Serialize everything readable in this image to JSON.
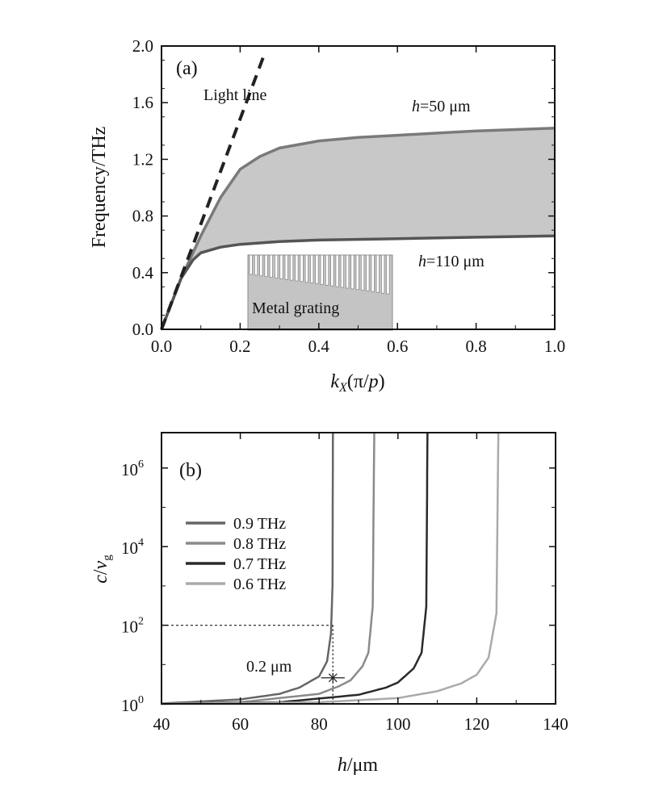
{
  "chart_data": [
    {
      "type": "area",
      "panel_label": "(a)",
      "title": "",
      "ylabel": "Frequency/THz",
      "xlabel_parts": {
        "k": "k",
        "sub": "X",
        "open": "(π/",
        "p": "p",
        "close": ")"
      },
      "xlim": [
        0,
        1.0
      ],
      "ylim": [
        0,
        2.0
      ],
      "xticks": [
        "0.0",
        "0.2",
        "0.4",
        "0.6",
        "0.8",
        "1.0"
      ],
      "yticks": [
        "0.0",
        "0.4",
        "0.8",
        "1.2",
        "1.6",
        "2.0"
      ],
      "grid": false,
      "series": [
        {
          "name": "h=50 μm",
          "label_h": "h",
          "label_rest": "=50  μm",
          "color": "#7a7a7a",
          "x": [
            0,
            0.05,
            0.1,
            0.15,
            0.2,
            0.25,
            0.3,
            0.4,
            0.5,
            0.6,
            0.7,
            0.8,
            0.9,
            1.0
          ],
          "y": [
            0,
            0.36,
            0.66,
            0.93,
            1.13,
            1.22,
            1.28,
            1.33,
            1.355,
            1.37,
            1.385,
            1.4,
            1.41,
            1.42
          ]
        },
        {
          "name": "h=110 μm",
          "label_h": "h",
          "label_rest": "=110  μm",
          "color": "#555555",
          "x": [
            0,
            0.05,
            0.08,
            0.1,
            0.15,
            0.2,
            0.3,
            0.4,
            0.6,
            0.8,
            1.0
          ],
          "y": [
            0,
            0.36,
            0.49,
            0.54,
            0.58,
            0.6,
            0.62,
            0.63,
            0.64,
            0.65,
            0.66
          ]
        },
        {
          "name": "Light line",
          "style": "dashed",
          "color": "#222222",
          "x": [
            0,
            0.26
          ],
          "y": [
            0,
            1.93
          ]
        }
      ],
      "fill_between": {
        "color": "#c8c8c8"
      },
      "annotations": {
        "light_line": "Light line",
        "inset": "Metal grating"
      }
    },
    {
      "type": "line",
      "panel_label": "(b)",
      "ylabel_parts": {
        "c": "c",
        "slash": "/",
        "v": "v",
        "sub": "g"
      },
      "xlabel_parts": {
        "h": "h",
        "rest": "/μm"
      },
      "xlim": [
        40,
        140
      ],
      "ylim_log10": [
        0,
        6.9
      ],
      "yscale": "log",
      "xticks": [
        "40",
        "60",
        "80",
        "100",
        "120",
        "140"
      ],
      "yticks": [
        {
          "base": "10",
          "exp": "0"
        },
        {
          "base": "10",
          "exp": "2"
        },
        {
          "base": "10",
          "exp": "4"
        },
        {
          "base": "10",
          "exp": "6"
        }
      ],
      "legend_placement": "center-left",
      "series": [
        {
          "name": "0.9 THz",
          "color": "#666666",
          "h": [
            40,
            60,
            70,
            75,
            80,
            82,
            83,
            83.4,
            83.5
          ],
          "y": [
            1.02,
            1.3,
            1.8,
            2.6,
            5,
            12,
            60,
            1000,
            10000000
          ]
        },
        {
          "name": "0.8 THz",
          "color": "#8a8a8a",
          "h": [
            40,
            60,
            80,
            85,
            88,
            91,
            92.5,
            93.6,
            94
          ],
          "y": [
            1.01,
            1.1,
            1.8,
            2.8,
            4,
            9,
            20,
            300,
            10000000
          ]
        },
        {
          "name": "0.7 THz",
          "color": "#2a2a2a",
          "h": [
            40,
            70,
            90,
            97,
            100,
            104,
            106,
            107.2,
            107.5
          ],
          "y": [
            1.0,
            1.1,
            1.7,
            2.6,
            3.5,
            8,
            20,
            300,
            10000000
          ]
        },
        {
          "name": "0.6 THz",
          "color": "#aaaaaa",
          "h": [
            40,
            80,
            100,
            110,
            116,
            120,
            123,
            125,
            125.5
          ],
          "y": [
            1.0,
            1.1,
            1.4,
            2.1,
            3.3,
            5.5,
            15,
            200,
            10000000
          ]
        }
      ],
      "reference_lines": {
        "h": 83.5,
        "y": 100
      },
      "marker": {
        "h": 83.5,
        "y": 4.6,
        "err_h": [
          80.5,
          86.5
        ]
      },
      "annotations": {
        "resolution": "0.2  μm"
      }
    }
  ]
}
